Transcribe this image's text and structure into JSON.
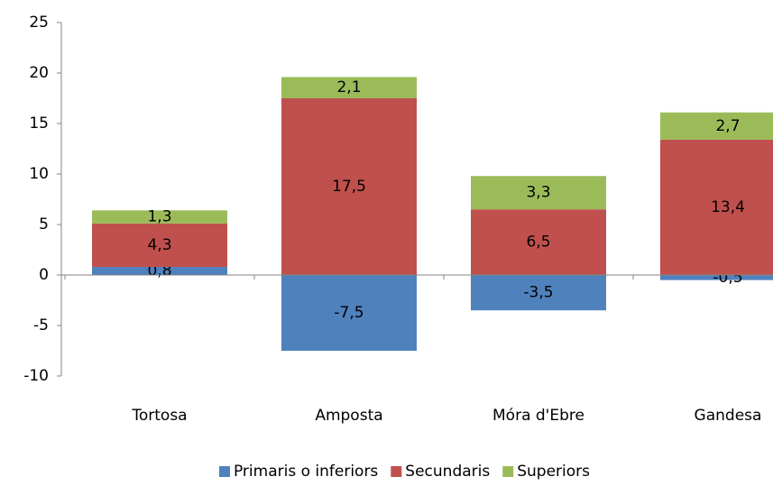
{
  "chart_data": {
    "type": "bar",
    "stacked": true,
    "categories": [
      "Tortosa",
      "Amposta",
      "Móra d'Ebre",
      "Gandesa"
    ],
    "series": [
      {
        "name": "Primaris o inferiors",
        "color": "#4f81bd",
        "values": [
          0.8,
          -7.5,
          -3.5,
          -0.5
        ],
        "value_labels": [
          "0,8",
          "-7,5",
          "-3,5",
          "-0,5"
        ]
      },
      {
        "name": "Secundaris",
        "color": "#c0504d",
        "values": [
          4.3,
          17.5,
          6.5,
          13.4
        ],
        "value_labels": [
          "4,3",
          "17,5",
          "6,5",
          "13,4"
        ]
      },
      {
        "name": "Superiors",
        "color": "#9bbb59",
        "values": [
          1.3,
          2.1,
          3.3,
          2.7
        ],
        "value_labels": [
          "1,3",
          "2,1",
          "3,3",
          "2,7"
        ]
      }
    ],
    "ylim": [
      -10,
      25
    ],
    "yticks": [
      -10,
      -5,
      0,
      5,
      10,
      15,
      20,
      25
    ],
    "legend": "bottom"
  }
}
